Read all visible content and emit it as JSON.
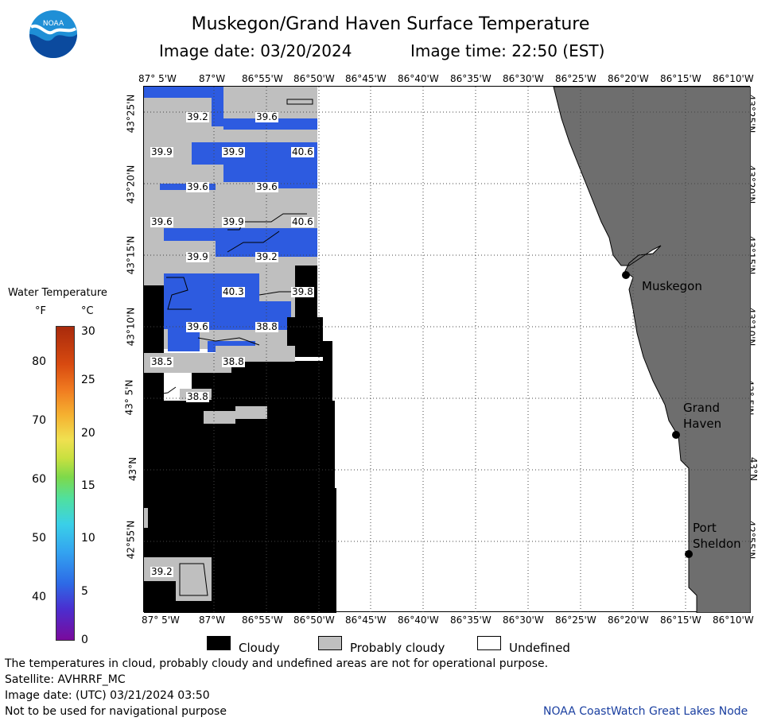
{
  "header": {
    "title": "Muskegon/Grand Haven Surface Temperature",
    "image_date": "Image date: 03/20/2024",
    "image_time": "Image time: 22:50 (EST)"
  },
  "logo_text": "NOAA",
  "longitude_labels": [
    "87° 5'W",
    "87°W",
    "86°55'W",
    "86°50'W",
    "86°45'W",
    "86°40'W",
    "86°35'W",
    "86°30'W",
    "86°25'W",
    "86°20'W",
    "86°15'W",
    "86°10'W"
  ],
  "latitude_labels": [
    "43°25'N",
    "43°20'N",
    "43°15'N",
    "43°10'N",
    "43° 5'N",
    "43°N",
    "42°55'N"
  ],
  "cities": [
    {
      "name_lines": [
        "Muskegon"
      ]
    },
    {
      "name_lines": [
        "Grand",
        "Haven"
      ]
    },
    {
      "name_lines": [
        "Port",
        "Sheldon"
      ]
    }
  ],
  "temperature_labels": [
    "39.2",
    "39.6",
    "39.9",
    "39.9",
    "40.6",
    "39.6",
    "39.6",
    "39.6",
    "39.9",
    "40.6",
    "39.9",
    "39.2",
    "40.3",
    "39.8",
    "39.6",
    "38.8",
    "38.5",
    "38.8",
    "38.8",
    "39.2"
  ],
  "legend": {
    "title": "Water Temperature",
    "unit_f": "°F",
    "unit_c": "°C",
    "ticks_f": [
      "80",
      "70",
      "60",
      "50",
      "40"
    ],
    "ticks_c": [
      "30",
      "25",
      "20",
      "15",
      "10",
      "5",
      "0"
    ],
    "colors": {
      "cloudy": "#000000",
      "probably_cloudy": "#bfbfbf",
      "undefined": "#ffffff",
      "land": "#6e6e6e",
      "water_cold": "#2d5be0"
    }
  },
  "key": {
    "cloudy": "Cloudy",
    "probably_cloudy": "Probably cloudy",
    "undefined": "Undefined"
  },
  "footer": {
    "disclaimer": "The temperatures in cloud, probably cloudy and undefined areas are not for operational purpose.",
    "satellite": "Satellite: AVHRRF_MC",
    "utc_date": "Image date: (UTC) 03/21/2024  03:50",
    "nav_warning": "Not to be used for navigational purpose",
    "credit": "NOAA CoastWatch Great Lakes Node"
  }
}
